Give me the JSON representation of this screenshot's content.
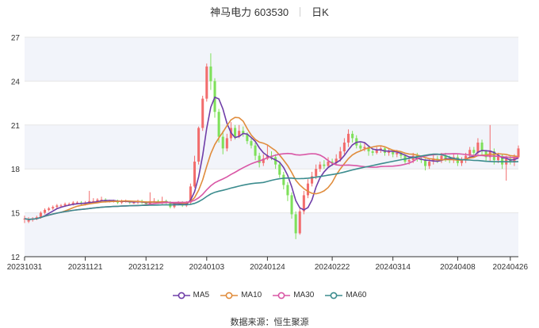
{
  "header": {
    "stock_name": "神马电力 603530",
    "period": "日K"
  },
  "source": "数据来源：恒生聚源",
  "colors": {
    "up": "#f26d6d",
    "down": "#7ee05a",
    "band": "#f2f4fa",
    "grid": "#e6e6e6",
    "MA5": "#6f3ea8",
    "MA10": "#e08c3c",
    "MA30": "#d957a6",
    "MA60": "#3c8c8e"
  },
  "chart_data": {
    "type": "candlestick",
    "title": "神马电力 603530",
    "ylim": [
      12,
      27
    ],
    "yticks": [
      12,
      15,
      18,
      21,
      24,
      27
    ],
    "xlabels": [
      "20231031",
      "20231121",
      "20231212",
      "20240103",
      "20240124",
      "20240222",
      "20240314",
      "20240408",
      "20240426"
    ],
    "xlabel_indices": [
      0,
      15,
      30,
      45,
      60,
      76,
      91,
      107,
      120
    ],
    "grid": true,
    "legend_position": "bottom",
    "legend": [
      "MA5",
      "MA10",
      "MA30",
      "MA60"
    ],
    "candles": [
      [
        14.6,
        14.6,
        14.8,
        14.3
      ],
      [
        14.4,
        14.5,
        14.7,
        14.3
      ],
      [
        14.6,
        14.6,
        14.7,
        14.4
      ],
      [
        14.6,
        14.7,
        14.8,
        14.5
      ],
      [
        14.7,
        15,
        15.1,
        14.6
      ],
      [
        15,
        15.2,
        15.3,
        14.9
      ],
      [
        15.2,
        15.3,
        15.4,
        15.1
      ],
      [
        15.3,
        15.4,
        15.5,
        15.2
      ],
      [
        15.4,
        15.5,
        15.6,
        15.3
      ],
      [
        15.5,
        15.5,
        15.6,
        15.4
      ],
      [
        15.5,
        15.6,
        15.7,
        15.4
      ],
      [
        15.6,
        15.6,
        15.7,
        15.5
      ],
      [
        15.6,
        15.7,
        15.8,
        15.5
      ],
      [
        15.7,
        15.7,
        15.8,
        15.6
      ],
      [
        15.7,
        15.6,
        15.8,
        15.5
      ],
      [
        15.6,
        15.7,
        15.8,
        15.5
      ],
      [
        15.7,
        15.8,
        16.5,
        15.6
      ],
      [
        15.8,
        15.8,
        16,
        15.7
      ],
      [
        15.8,
        15.9,
        16,
        15.7
      ],
      [
        15.9,
        15.9,
        16.1,
        15.8
      ],
      [
        15.9,
        15.8,
        16,
        15.7
      ],
      [
        15.8,
        15.8,
        15.9,
        15.7
      ],
      [
        15.8,
        15.8,
        15.9,
        15.7
      ],
      [
        15.8,
        15.7,
        15.9,
        15.6
      ],
      [
        15.7,
        15.8,
        15.9,
        15.6
      ],
      [
        15.8,
        15.8,
        15.9,
        15.7
      ],
      [
        15.8,
        15.7,
        15.8,
        15.6
      ],
      [
        15.7,
        15.7,
        15.8,
        15.6
      ],
      [
        15.7,
        15.8,
        15.9,
        15.6
      ],
      [
        15.8,
        15.7,
        15.9,
        15.6
      ],
      [
        15.7,
        15.6,
        15.8,
        15.5
      ],
      [
        15.6,
        15.8,
        16.4,
        15.5
      ],
      [
        15.8,
        15.8,
        16,
        15.7
      ],
      [
        15.8,
        15.7,
        15.9,
        15.6
      ],
      [
        15.7,
        15.8,
        16.1,
        15.6
      ],
      [
        15.8,
        15.7,
        15.9,
        15.6
      ],
      [
        15.7,
        15.4,
        15.8,
        15.3
      ],
      [
        15.4,
        15.6,
        15.7,
        15.3
      ],
      [
        15.6,
        15.7,
        15.8,
        15.5
      ],
      [
        15.7,
        15.5,
        15.8,
        15.4
      ],
      [
        15.5,
        15.7,
        15.8,
        15.4
      ],
      [
        15.7,
        16.8,
        17,
        15.6
      ],
      [
        16.8,
        18.5,
        18.9,
        16.7
      ],
      [
        18.5,
        20.8,
        20.9,
        18.3
      ],
      [
        20.8,
        22.8,
        23,
        20.6
      ],
      [
        22.8,
        25,
        25.2,
        22.6
      ],
      [
        25,
        24,
        25.9,
        23.4
      ],
      [
        24,
        21.9,
        24.2,
        21.5
      ],
      [
        21.9,
        20.2,
        22.1,
        19.8
      ],
      [
        20.2,
        19.4,
        20.6,
        19
      ],
      [
        19.4,
        20.1,
        20.4,
        19.2
      ],
      [
        20.1,
        20.8,
        21.2,
        19.9
      ],
      [
        20.8,
        20.2,
        21,
        20
      ],
      [
        20.2,
        20.6,
        21,
        20.1
      ],
      [
        20.6,
        20.4,
        20.9,
        20.2
      ],
      [
        20.4,
        19.9,
        20.5,
        19.7
      ],
      [
        19.9,
        19.6,
        20.1,
        19.4
      ],
      [
        19.6,
        18.9,
        19.8,
        18.6
      ],
      [
        18.9,
        18.4,
        19.1,
        18.1
      ],
      [
        18.4,
        18.7,
        19,
        18.2
      ],
      [
        18.7,
        18.9,
        19.6,
        18.6
      ],
      [
        18.9,
        18.8,
        19.2,
        18.6
      ],
      [
        18.8,
        18.3,
        19,
        18
      ],
      [
        18.3,
        17.6,
        18.5,
        17.4
      ],
      [
        17.6,
        16.9,
        17.8,
        16.6
      ],
      [
        16.9,
        16.2,
        17.1,
        15.8
      ],
      [
        16.2,
        14.9,
        16.4,
        14.6
      ],
      [
        14.9,
        13.6,
        15.1,
        13.2
      ],
      [
        13.6,
        15.1,
        15.4,
        13.5
      ],
      [
        15.1,
        16.2,
        16.5,
        14.9
      ],
      [
        16.2,
        17,
        17.3,
        16
      ],
      [
        17,
        17.5,
        17.8,
        16.8
      ],
      [
        17.5,
        18,
        18.3,
        17.3
      ],
      [
        18,
        18.3,
        18.5,
        17.8
      ],
      [
        18.3,
        18.2,
        18.6,
        18
      ],
      [
        18.2,
        18.5,
        18.8,
        18.1
      ],
      [
        18.5,
        18.4,
        18.7,
        18.2
      ],
      [
        18.4,
        18.7,
        19,
        18.3
      ],
      [
        18.7,
        19.2,
        19.5,
        18.5
      ],
      [
        19.2,
        19.8,
        20.1,
        19
      ],
      [
        19.8,
        20.4,
        20.7,
        19.5
      ],
      [
        20.4,
        20.1,
        20.6,
        19.8
      ],
      [
        20.1,
        19.6,
        20.3,
        19.4
      ],
      [
        19.6,
        19.4,
        19.8,
        19.2
      ],
      [
        19.4,
        19.5,
        19.8,
        19.2
      ],
      [
        19.5,
        19.2,
        19.6,
        18.9
      ],
      [
        19.2,
        19.1,
        19.4,
        18.9
      ],
      [
        19.1,
        19.3,
        19.5,
        19
      ],
      [
        19.3,
        19.4,
        19.6,
        19.1
      ],
      [
        19.4,
        19.1,
        19.5,
        18.9
      ],
      [
        19.1,
        19.2,
        19.4,
        18.9
      ],
      [
        19.2,
        19,
        19.3,
        18.8
      ],
      [
        19,
        19.1,
        19.3,
        18.8
      ],
      [
        19.1,
        18.9,
        19.2,
        18.7
      ],
      [
        18.9,
        18.5,
        19,
        18.3
      ],
      [
        18.5,
        18.6,
        18.8,
        18.3
      ],
      [
        18.6,
        18.9,
        19.1,
        18.4
      ],
      [
        18.9,
        18.7,
        19.1,
        18.5
      ],
      [
        18.7,
        18.6,
        18.9,
        18.4
      ],
      [
        18.6,
        18.2,
        18.7,
        17.9
      ],
      [
        18.2,
        18.5,
        18.7,
        18
      ],
      [
        18.5,
        18.7,
        19,
        18.3
      ],
      [
        18.7,
        18.6,
        18.9,
        18.4
      ],
      [
        18.6,
        18.9,
        19.1,
        18.4
      ],
      [
        18.9,
        18.7,
        19.1,
        18.5
      ],
      [
        18.7,
        18.6,
        18.9,
        18.4
      ],
      [
        18.6,
        18.8,
        19,
        18.4
      ],
      [
        18.8,
        18.4,
        19,
        18.2
      ],
      [
        18.4,
        18.6,
        18.8,
        18.2
      ],
      [
        18.6,
        18.9,
        19.1,
        18.4
      ],
      [
        18.9,
        19.3,
        19.5,
        18.7
      ],
      [
        19.3,
        19.1,
        19.5,
        18.9
      ],
      [
        19.1,
        19.8,
        20.1,
        18.9
      ],
      [
        19.8,
        19.2,
        20,
        18.9
      ],
      [
        19.2,
        18.8,
        19.3,
        18.5
      ],
      [
        18.8,
        19.2,
        21,
        18.5
      ],
      [
        19.2,
        18.6,
        19.4,
        18.3
      ],
      [
        18.6,
        18.9,
        19.1,
        18.4
      ],
      [
        18.9,
        18.3,
        19,
        18
      ],
      [
        18.3,
        18.7,
        18.9,
        17.2
      ],
      [
        18.7,
        18.5,
        18.9,
        18.3
      ],
      [
        18.5,
        18.8,
        19,
        18.2
      ],
      [
        18.8,
        19.4,
        19.6,
        18.7
      ]
    ]
  }
}
